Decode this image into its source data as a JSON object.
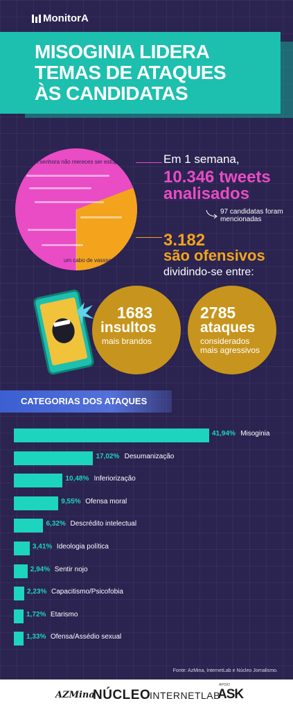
{
  "brand": {
    "name": "MonitorA"
  },
  "headline": {
    "line1": "MISOGINIA LIDERA",
    "line2": "TEMAS DE ATAQUES",
    "line3": "ÀS CANDIDATAS"
  },
  "intro": {
    "period": "Em 1 semana,",
    "tweets": "10.346 tweets analisados",
    "candidates": "97 candidatas foram mencionadas",
    "offensive_count": "3.182",
    "offensive_label": "são ofensivos",
    "dividing": "dividindo-se entre:"
  },
  "pie_chart": {
    "total": 10346,
    "offensive": 3182,
    "overlay_text_1": "A senhora não mereces ser estup",
    "overlay_text_2": "um cabo de vasssou",
    "colors": {
      "total": "#e94cc4",
      "offensive": "#f3a41c"
    }
  },
  "split": {
    "mild": {
      "number": "1683",
      "label": "insultos",
      "sub": "mais brandos"
    },
    "aggressive": {
      "number": "2785",
      "label": "ataques",
      "sub": "considerados mais agressivos"
    }
  },
  "categories_title": "CATEGORIAS DOS ATAQUES",
  "chart_data": {
    "type": "bar",
    "orientation": "horizontal",
    "title": "CATEGORIAS DOS ATAQUES",
    "categories": [
      "Misoginia",
      "Desumanização",
      "Inferiorização",
      "Ofensa moral",
      "Descrédito intelectual",
      "Ideologia política",
      "Sentir nojo",
      "Capacitismo/Psicofobia",
      "Etarismo",
      "Ofensa/Assédio sexual"
    ],
    "values": [
      41.94,
      17.02,
      10.48,
      9.55,
      6.32,
      3.41,
      2.94,
      2.23,
      1.72,
      1.33
    ],
    "value_labels": [
      "41,94%",
      "17,02%",
      "10,48%",
      "9,55%",
      "6,32%",
      "3,41%",
      "2,94%",
      "2,23%",
      "1,72%",
      "1,33%"
    ],
    "bar_color": "#1dd4bf",
    "xlim": [
      0,
      41.94
    ],
    "grid": false
  },
  "source": "Fonte: AzMina, InternetLab e Núcleo Jornalismo.",
  "footer": {
    "logos": [
      "AZMina",
      "NÚCLEO",
      "INTERNETLAB",
      "ASK"
    ],
    "support_label": "APOIO"
  },
  "colors": {
    "background": "#2b2350",
    "accent_teal": "#1dbfae",
    "accent_pink": "#e94cc4",
    "accent_orange": "#f3a41c",
    "circle_gold": "#c7951d"
  }
}
